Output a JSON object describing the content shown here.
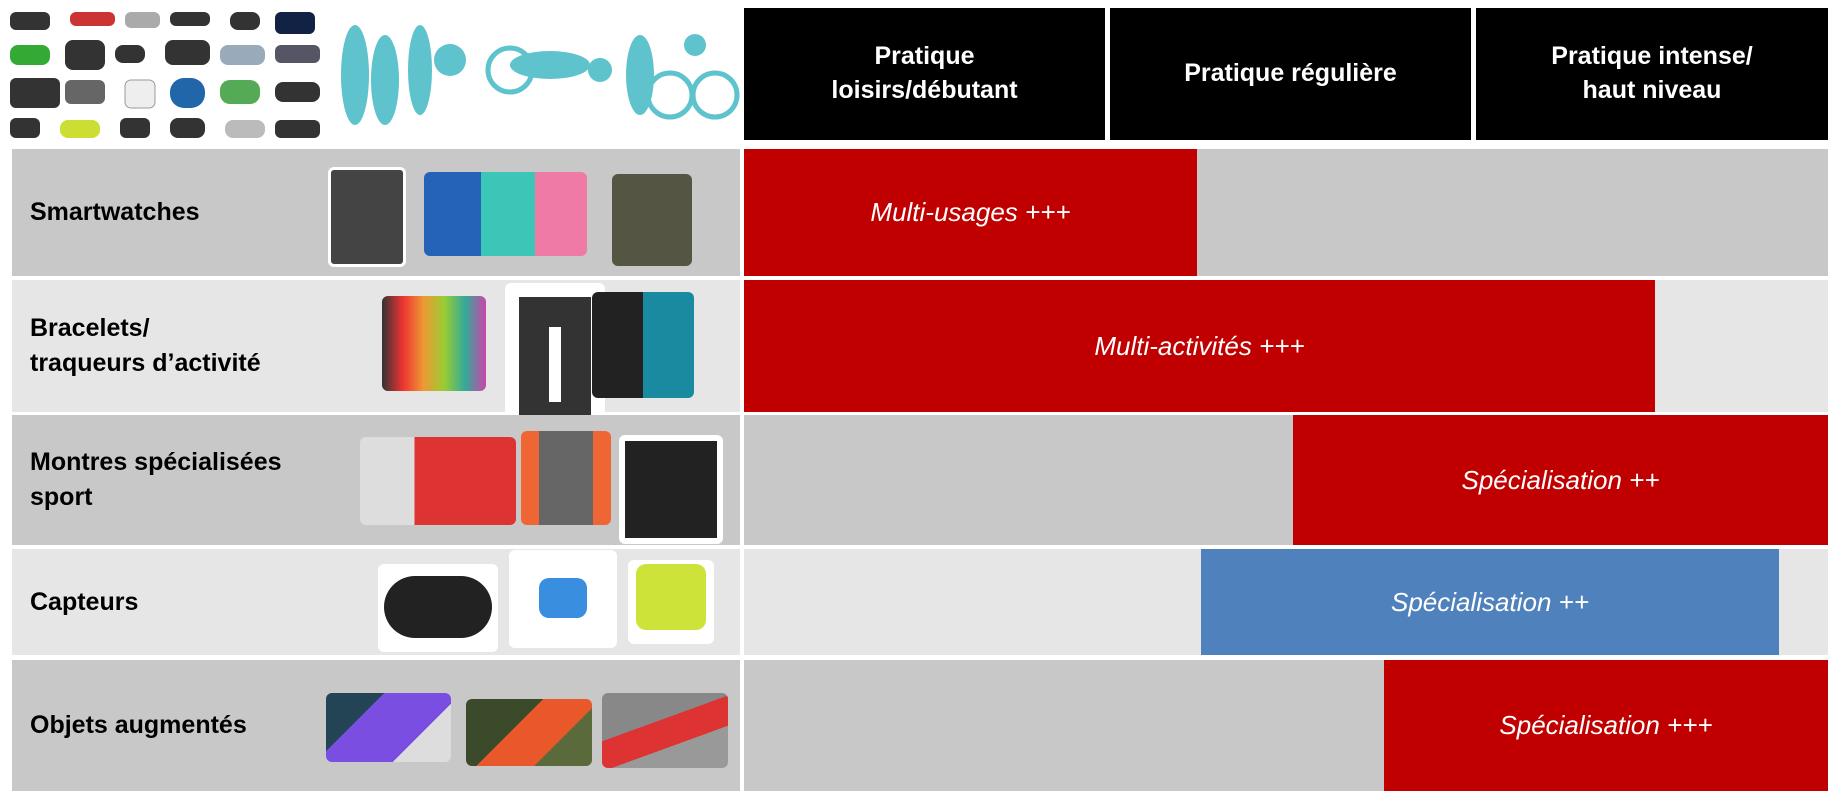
{
  "header": {
    "columns": [
      "Pratique\nloisirs/débutant",
      "Pratique régulière",
      "Pratique intense/\nhaut niveau"
    ]
  },
  "rows": [
    {
      "label": "Smartwatches",
      "bar": "Multi-usages +++"
    },
    {
      "label": "Bracelets/\ntraqueurs d’activité",
      "bar": "Multi-activités +++"
    },
    {
      "label": "Montres spécialisées\nsport",
      "bar": "Spécialisation ++"
    },
    {
      "label": "Capteurs",
      "bar": "Spécialisation ++"
    },
    {
      "label": "Objets augmentés",
      "bar": "Spécialisation +++"
    }
  ]
}
